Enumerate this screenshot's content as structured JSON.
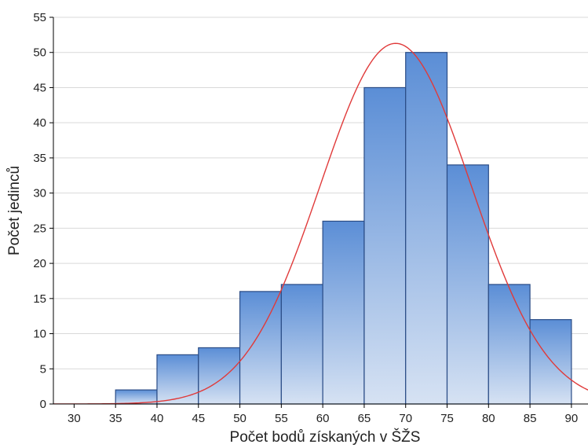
{
  "chart_data": {
    "type": "bar",
    "xlabel": "Počet bodů získaných v ŠŽS",
    "ylabel": "Počet jedinců",
    "xlim": [
      27.5,
      92
    ],
    "ylim": [
      0,
      55
    ],
    "x_ticks": [
      30,
      35,
      40,
      45,
      50,
      55,
      60,
      65,
      70,
      75,
      80,
      85,
      90
    ],
    "y_ticks": [
      0,
      5,
      10,
      15,
      20,
      25,
      30,
      35,
      40,
      45,
      50,
      55
    ],
    "grid": true,
    "bins": [
      {
        "from": 35,
        "to": 40,
        "count": 2
      },
      {
        "from": 40,
        "to": 45,
        "count": 7
      },
      {
        "from": 45,
        "to": 50,
        "count": 8
      },
      {
        "from": 50,
        "to": 55,
        "count": 16
      },
      {
        "from": 55,
        "to": 60,
        "count": 17
      },
      {
        "from": 60,
        "to": 65,
        "count": 26
      },
      {
        "from": 65,
        "to": 70,
        "count": 45
      },
      {
        "from": 70,
        "to": 75,
        "count": 50
      },
      {
        "from": 75,
        "to": 80,
        "count": 34
      },
      {
        "from": 80,
        "to": 85,
        "count": 17
      },
      {
        "from": 85,
        "to": 90,
        "count": 12
      }
    ],
    "fitted_curve": {
      "type": "normal",
      "mean": 68.8,
      "sd": 9.1,
      "total": 234,
      "bin_width": 5
    },
    "colors": {
      "bar_top": "#5b8ed6",
      "bar_bottom": "#d6e2f3",
      "bar_stroke": "#2a4c86",
      "curve": "#e03a3a",
      "grid": "#d9d9d9",
      "axis": "#000000"
    }
  }
}
